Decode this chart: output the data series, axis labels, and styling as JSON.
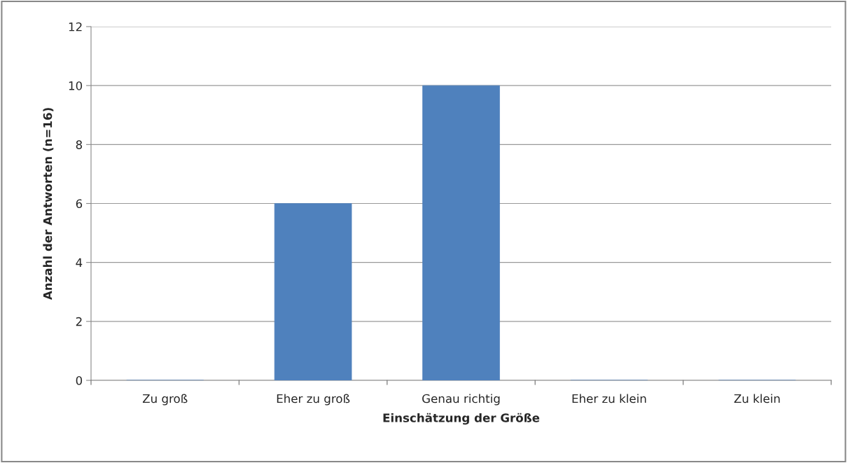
{
  "chart_data": {
    "type": "bar",
    "xlabel": "Einschätzung der Größe",
    "ylabel": "Anzahl der Antworten (n=16)",
    "categories": [
      "Zu groß",
      "Eher zu groß",
      "Genau richtig",
      "Eher zu klein",
      "Zu klein"
    ],
    "values": [
      0,
      6,
      10,
      0,
      0
    ],
    "color": "#4f81bd",
    "ylim": [
      0,
      12
    ],
    "yticks": [
      0,
      2,
      4,
      6,
      8,
      10,
      12
    ],
    "grid": "y",
    "legend": false
  }
}
